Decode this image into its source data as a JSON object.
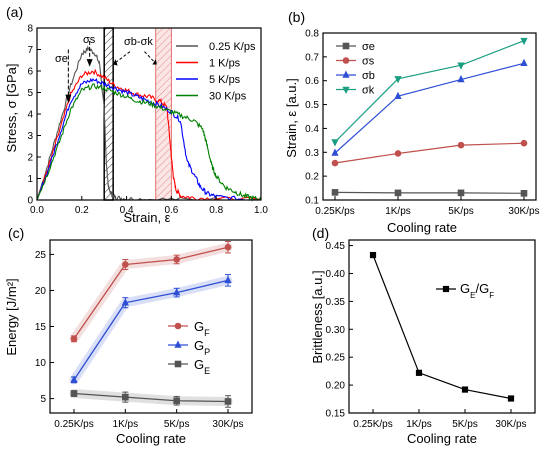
{
  "chart_data": [
    {
      "type": "line",
      "panel_label": "(a)",
      "xlabel": "Strain, ε",
      "ylabel": "Stress, σ [GPa]",
      "xlim": [
        0,
        1.0
      ],
      "ylim": [
        0,
        8
      ],
      "xticks": [
        "0.0",
        "0.2",
        "0.4",
        "0.6",
        "0.8",
        "1.0"
      ],
      "yticks": [
        "0",
        "1",
        "2",
        "3",
        "4",
        "5",
        "6",
        "7",
        "8"
      ],
      "legend_position": "top-right",
      "annotations": [
        "σe",
        "σs",
        "σb-σk"
      ],
      "series": [
        {
          "name": "0.25 K/ps",
          "color": "#555555",
          "x": [
            0,
            0.05,
            0.1,
            0.15,
            0.2,
            0.23,
            0.26,
            0.28,
            0.3,
            0.31,
            0.32,
            0.34,
            0.36,
            0.4,
            0.5,
            0.7,
            1.0
          ],
          "y": [
            0,
            1.7,
            3.5,
            5.3,
            6.8,
            7.05,
            6.8,
            6.3,
            4.2,
            1.6,
            0.5,
            0.15,
            0.1,
            0.05,
            0.03,
            0.02,
            0.0
          ]
        },
        {
          "name": "1 K/ps",
          "color": "#ff0000",
          "x": [
            0,
            0.05,
            0.1,
            0.15,
            0.2,
            0.25,
            0.3,
            0.35,
            0.4,
            0.45,
            0.5,
            0.55,
            0.58,
            0.6,
            0.61,
            0.62,
            0.64,
            0.7,
            0.8,
            1.0
          ],
          "y": [
            0,
            1.5,
            3.2,
            4.9,
            5.8,
            6.0,
            5.7,
            5.3,
            5.1,
            4.9,
            4.8,
            4.6,
            4.3,
            2.0,
            1.0,
            0.5,
            0.2,
            0.1,
            0.05,
            0.0
          ]
        },
        {
          "name": "5 K/ps",
          "color": "#0000ff",
          "x": [
            0,
            0.05,
            0.1,
            0.15,
            0.2,
            0.25,
            0.3,
            0.35,
            0.4,
            0.45,
            0.5,
            0.55,
            0.6,
            0.64,
            0.67,
            0.7,
            0.73,
            0.76,
            0.8,
            0.9,
            1.0
          ],
          "y": [
            0,
            1.4,
            3.0,
            4.6,
            5.4,
            5.6,
            5.4,
            5.2,
            5.0,
            4.8,
            4.6,
            4.4,
            4.1,
            3.7,
            1.8,
            1.2,
            0.6,
            0.3,
            0.15,
            0.05,
            0.0
          ]
        },
        {
          "name": "30 K/ps",
          "color": "#008000",
          "x": [
            0,
            0.05,
            0.1,
            0.15,
            0.2,
            0.25,
            0.3,
            0.35,
            0.4,
            0.45,
            0.5,
            0.55,
            0.6,
            0.65,
            0.7,
            0.74,
            0.76,
            0.78,
            0.8,
            0.84,
            0.88,
            0.92,
            0.96,
            1.0
          ],
          "y": [
            0,
            1.3,
            2.7,
            4.2,
            5.1,
            5.3,
            5.2,
            5.0,
            4.8,
            4.6,
            4.5,
            4.3,
            4.1,
            3.9,
            3.7,
            3.3,
            2.5,
            1.6,
            1.1,
            0.6,
            0.4,
            0.2,
            0.1,
            0.0
          ]
        }
      ]
    },
    {
      "type": "line",
      "panel_label": "(b)",
      "xlabel": "Cooling rate",
      "ylabel": "Strain, ε [a.u.]",
      "categories": [
        "0.25K/ps",
        "1K/ps",
        "5K/ps",
        "30K/ps"
      ],
      "ylim": [
        0.1,
        0.8
      ],
      "yticks": [
        "0.1",
        "0.2",
        "0.3",
        "0.4",
        "0.5",
        "0.6",
        "0.7",
        "0.8"
      ],
      "legend_position": "top-left",
      "series": [
        {
          "name": "σe",
          "color": "#555555",
          "marker": "square",
          "values": [
            0.132,
            0.13,
            0.13,
            0.128
          ]
        },
        {
          "name": "σs",
          "color": "#c0504d",
          "marker": "circle",
          "values": [
            0.255,
            0.295,
            0.33,
            0.338
          ]
        },
        {
          "name": "σb",
          "color": "#2e4fd4",
          "marker": "triangle-up",
          "values": [
            0.297,
            0.535,
            0.605,
            0.673
          ]
        },
        {
          "name": "σk",
          "color": "#1a9e82",
          "marker": "triangle-down",
          "values": [
            0.343,
            0.608,
            0.665,
            0.768
          ]
        }
      ]
    },
    {
      "type": "line",
      "panel_label": "(c)",
      "xlabel": "Cooling rate",
      "ylabel": "Energy [J/m²]",
      "categories": [
        "0.25K/ps",
        "1K/ps",
        "5K/ps",
        "30K/ps"
      ],
      "ylim": [
        3,
        27
      ],
      "yticks": [
        "5",
        "10",
        "15",
        "20",
        "25"
      ],
      "legend_position": "center-right",
      "series": [
        {
          "name": "G",
          "sub": "F",
          "color": "#c0504d",
          "marker": "circle",
          "values": [
            13.3,
            23.6,
            24.3,
            26.0
          ],
          "err": [
            0.4,
            0.7,
            0.6,
            0.8
          ]
        },
        {
          "name": "G",
          "sub": "P",
          "color": "#2e4fd4",
          "marker": "triangle-up",
          "values": [
            7.6,
            18.3,
            19.7,
            21.4
          ],
          "err": [
            0.4,
            0.7,
            0.6,
            0.8
          ]
        },
        {
          "name": "G",
          "sub": "E",
          "color": "#555555",
          "marker": "square",
          "values": [
            5.7,
            5.2,
            4.7,
            4.6
          ],
          "err": [
            0.4,
            0.7,
            0.6,
            0.8
          ]
        }
      ]
    },
    {
      "type": "line",
      "panel_label": "(d)",
      "xlabel": "Cooling rate",
      "ylabel": "Brittleness [a.u.]",
      "categories": [
        "0.25K/ps",
        "1K/ps",
        "5K/ps",
        "30K/ps"
      ],
      "ylim": [
        0.15,
        0.46
      ],
      "yticks": [
        "0.15",
        "0.20",
        "0.25",
        "0.30",
        "0.35",
        "0.40",
        "0.45"
      ],
      "legend_position": "top-right",
      "series": [
        {
          "name": "G",
          "name_sub1": "E",
          "name_mid": "/G",
          "name_sub2": "F",
          "color": "#000000",
          "marker": "square",
          "values": [
            0.433,
            0.222,
            0.192,
            0.176
          ]
        }
      ]
    }
  ]
}
